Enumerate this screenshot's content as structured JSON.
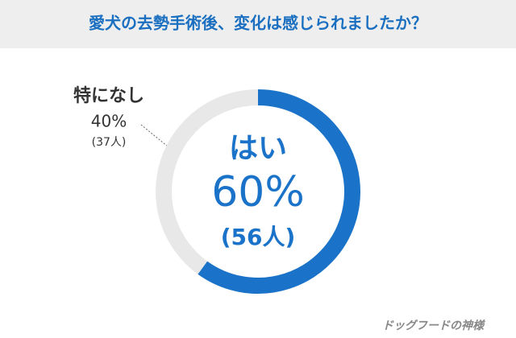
{
  "chart_data": {
    "type": "donut",
    "title": "愛犬の去勢手術後、変化は感じられましたか？",
    "categories": [
      "はい",
      "特になし"
    ],
    "values": [
      60,
      40
    ],
    "value_labels": [
      "60%",
      "40%"
    ],
    "count_labels": [
      "(56人)",
      "(37人)"
    ],
    "colors": [
      "#1a73c8",
      "#e8e8e8"
    ],
    "watermark": "ドッグフードの神様"
  }
}
